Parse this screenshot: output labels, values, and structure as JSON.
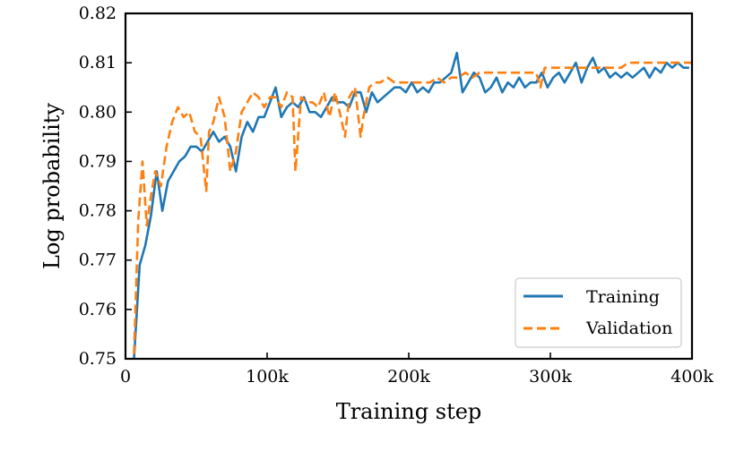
{
  "chart_data": {
    "type": "line",
    "title": "",
    "xlabel": "Training step",
    "ylabel": "Log probability",
    "xlim": [
      0,
      400000
    ],
    "ylim": [
      0.75,
      0.82
    ],
    "x_ticks": [
      0,
      100000,
      200000,
      300000,
      400000
    ],
    "x_tick_labels": [
      "0",
      "100k",
      "200k",
      "300k",
      "400k"
    ],
    "y_ticks": [
      0.75,
      0.76,
      0.77,
      0.78,
      0.79,
      0.8,
      0.81,
      0.82
    ],
    "y_tick_labels": [
      "0.75",
      "0.76",
      "0.77",
      "0.78",
      "0.79",
      "0.80",
      "0.81",
      "0.82"
    ],
    "grid": false,
    "legend_position": "lower-right",
    "series": [
      {
        "name": "Training",
        "color": "#1f77b4",
        "style": "solid",
        "x": [
          6000,
          10000,
          14000,
          18000,
          22000,
          26000,
          30000,
          34000,
          38000,
          42000,
          46000,
          50000,
          54000,
          58000,
          62000,
          66000,
          70000,
          74000,
          78000,
          82000,
          86000,
          90000,
          94000,
          98000,
          102000,
          106000,
          110000,
          114000,
          118000,
          122000,
          126000,
          130000,
          134000,
          138000,
          142000,
          146000,
          150000,
          154000,
          158000,
          162000,
          166000,
          170000,
          174000,
          178000,
          182000,
          186000,
          190000,
          194000,
          198000,
          202000,
          206000,
          210000,
          214000,
          218000,
          222000,
          226000,
          230000,
          234000,
          238000,
          242000,
          246000,
          250000,
          254000,
          258000,
          262000,
          266000,
          270000,
          274000,
          278000,
          282000,
          286000,
          290000,
          294000,
          298000,
          302000,
          306000,
          310000,
          314000,
          318000,
          322000,
          326000,
          330000,
          334000,
          338000,
          342000,
          346000,
          350000,
          354000,
          358000,
          362000,
          366000,
          370000,
          374000,
          378000,
          382000,
          386000,
          390000,
          394000,
          398000
        ],
        "values": [
          0.75,
          0.769,
          0.773,
          0.779,
          0.788,
          0.78,
          0.786,
          0.788,
          0.79,
          0.791,
          0.793,
          0.793,
          0.792,
          0.794,
          0.796,
          0.794,
          0.795,
          0.793,
          0.788,
          0.795,
          0.798,
          0.796,
          0.799,
          0.799,
          0.802,
          0.805,
          0.799,
          0.801,
          0.802,
          0.801,
          0.803,
          0.8,
          0.8,
          0.799,
          0.801,
          0.803,
          0.802,
          0.802,
          0.801,
          0.804,
          0.804,
          0.8,
          0.804,
          0.802,
          0.803,
          0.804,
          0.805,
          0.805,
          0.804,
          0.806,
          0.804,
          0.805,
          0.804,
          0.806,
          0.806,
          0.807,
          0.808,
          0.812,
          0.804,
          0.806,
          0.808,
          0.807,
          0.804,
          0.805,
          0.807,
          0.804,
          0.806,
          0.805,
          0.807,
          0.805,
          0.806,
          0.806,
          0.808,
          0.805,
          0.807,
          0.808,
          0.806,
          0.808,
          0.81,
          0.806,
          0.809,
          0.811,
          0.808,
          0.809,
          0.807,
          0.808,
          0.807,
          0.808,
          0.807,
          0.808,
          0.809,
          0.807,
          0.809,
          0.808,
          0.81,
          0.809,
          0.81,
          0.809,
          0.809
        ]
      },
      {
        "name": "Validation",
        "color": "#ff7f0e",
        "style": "dashed",
        "x": [
          6000,
          9000,
          12000,
          15000,
          18000,
          21000,
          25000,
          29000,
          33000,
          37000,
          41000,
          45000,
          49000,
          53000,
          57000,
          59000,
          62000,
          66000,
          70000,
          74000,
          78000,
          82000,
          86000,
          90000,
          94000,
          98000,
          102000,
          106000,
          110000,
          114000,
          118000,
          120000,
          124000,
          128000,
          132000,
          136000,
          140000,
          144000,
          148000,
          152000,
          155000,
          158000,
          162000,
          166000,
          168000,
          172000,
          176000,
          180000,
          185000,
          190000,
          195000,
          200000,
          205000,
          210000,
          215000,
          220000,
          225000,
          230000,
          235000,
          240000,
          245000,
          250000,
          255000,
          260000,
          265000,
          270000,
          275000,
          280000,
          285000,
          290000,
          293000,
          296000,
          300000,
          305000,
          310000,
          315000,
          320000,
          325000,
          330000,
          335000,
          340000,
          345000,
          350000,
          355000,
          360000,
          365000,
          370000,
          375000,
          380000,
          385000,
          390000,
          395000,
          400000
        ],
        "values": [
          0.751,
          0.778,
          0.79,
          0.777,
          0.783,
          0.788,
          0.785,
          0.793,
          0.798,
          0.801,
          0.799,
          0.8,
          0.796,
          0.795,
          0.784,
          0.796,
          0.798,
          0.803,
          0.799,
          0.788,
          0.792,
          0.8,
          0.802,
          0.804,
          0.803,
          0.801,
          0.803,
          0.803,
          0.801,
          0.804,
          0.803,
          0.788,
          0.803,
          0.802,
          0.802,
          0.801,
          0.804,
          0.799,
          0.804,
          0.799,
          0.795,
          0.803,
          0.805,
          0.795,
          0.799,
          0.805,
          0.806,
          0.806,
          0.807,
          0.806,
          0.806,
          0.806,
          0.806,
          0.806,
          0.806,
          0.807,
          0.806,
          0.807,
          0.807,
          0.808,
          0.807,
          0.808,
          0.808,
          0.808,
          0.808,
          0.808,
          0.808,
          0.808,
          0.808,
          0.808,
          0.805,
          0.809,
          0.809,
          0.809,
          0.809,
          0.809,
          0.809,
          0.809,
          0.809,
          0.809,
          0.809,
          0.809,
          0.809,
          0.81,
          0.81,
          0.81,
          0.81,
          0.81,
          0.81,
          0.81,
          0.81,
          0.81,
          0.81
        ]
      }
    ]
  }
}
